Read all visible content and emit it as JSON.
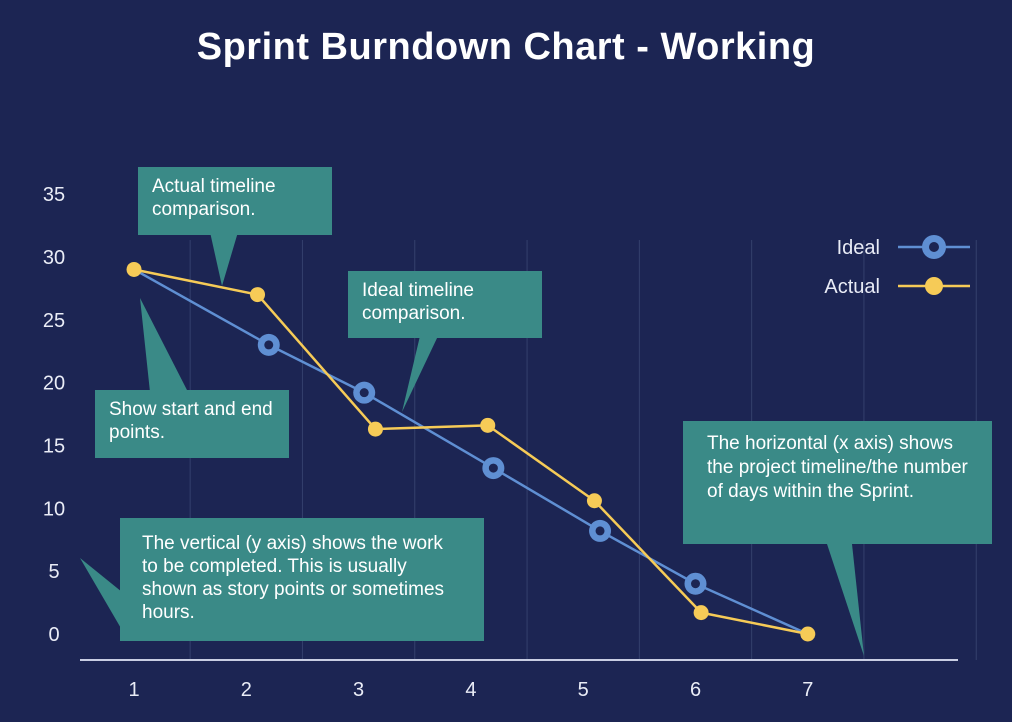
{
  "chart_data": {
    "type": "line",
    "title": "Sprint Burndown Chart - Working",
    "x_ticks": [
      "1",
      "2",
      "3",
      "4",
      "5",
      "6",
      "7"
    ],
    "y_ticks": [
      "0",
      "5",
      "10",
      "15",
      "20",
      "25",
      "30",
      "35"
    ],
    "ylim": [
      -2,
      37
    ],
    "xlim": [
      0.5,
      8.5
    ],
    "grid": "vertical",
    "legend_position": "top-right",
    "series": [
      {
        "name": "Ideal",
        "color": "#5f8fd3",
        "marker": "ring",
        "points": [
          [
            1,
            29
          ],
          [
            2.2,
            23
          ],
          [
            3.05,
            19.2
          ],
          [
            4.2,
            13.2
          ],
          [
            5.15,
            8.2
          ],
          [
            6.0,
            4.0
          ],
          [
            7,
            0
          ]
        ]
      },
      {
        "name": "Actual",
        "color": "#f6cb57",
        "marker": "dot",
        "points": [
          [
            1,
            29
          ],
          [
            2.1,
            27
          ],
          [
            3.15,
            16.3
          ],
          [
            4.15,
            16.6
          ],
          [
            5.1,
            10.6
          ],
          [
            6.05,
            1.7
          ],
          [
            7,
            0
          ]
        ]
      }
    ],
    "annotations": [
      {
        "id": "actual",
        "text": "Actual timeline comparison."
      },
      {
        "id": "ideal",
        "text": "Ideal timeline comparison."
      },
      {
        "id": "start-end",
        "text": "Show start and end points."
      },
      {
        "id": "y-axis",
        "text": "The vertical (y axis) shows the work to be completed. This is usually shown as story points or sometimes hours."
      },
      {
        "id": "x-axis",
        "text": "The horizontal (x axis) shows the project timeline/the number of days within the Sprint."
      }
    ]
  },
  "colors": {
    "background": "#1c2553",
    "callout": "#3a8a87",
    "axis": "#c9cee3",
    "grid": "#34406d"
  }
}
